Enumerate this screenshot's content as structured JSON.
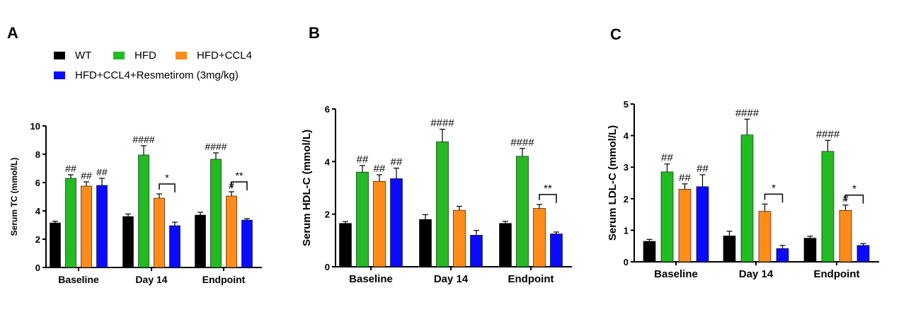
{
  "panels": {
    "a": "A",
    "b": "B",
    "c": "C"
  },
  "legend": {
    "items": [
      {
        "label": "WT",
        "color": "#000000"
      },
      {
        "label": "HFD",
        "color": "#22bb22"
      },
      {
        "label": "HFD+CCL4",
        "color": "#ff8c1a"
      },
      {
        "label": "HFD+CCL4+Resmetirom (3mg/kg)",
        "color": "#0a0aff"
      }
    ]
  },
  "chart_data": [
    {
      "type": "bar",
      "panel": "A",
      "ylabel": "Serum TC (mmol/L)",
      "ylim": [
        0,
        10
      ],
      "yticks": [
        0,
        2,
        4,
        6,
        8,
        10
      ],
      "categories": [
        "Baseline",
        "Day 14",
        "Endpoint"
      ],
      "series": [
        {
          "name": "WT",
          "values": [
            3.15,
            3.6,
            3.7
          ],
          "errors": [
            0.12,
            0.18,
            0.2
          ]
        },
        {
          "name": "HFD",
          "values": [
            6.3,
            7.95,
            7.65
          ],
          "errors": [
            0.25,
            0.65,
            0.45
          ]
        },
        {
          "name": "HFD+CCL4",
          "values": [
            5.75,
            4.9,
            5.05
          ],
          "errors": [
            0.3,
            0.3,
            0.3
          ]
        },
        {
          "name": "HFD+CCL4+Resmetirom (3mg/kg)",
          "values": [
            5.8,
            2.95,
            3.35
          ],
          "errors": [
            0.5,
            0.25,
            0.1
          ]
        }
      ],
      "annotations": [
        {
          "category": 0,
          "series": 1,
          "text": "##"
        },
        {
          "category": 0,
          "series": 2,
          "text": "##"
        },
        {
          "category": 0,
          "series": 3,
          "text": "##"
        },
        {
          "category": 1,
          "series": 1,
          "text": "####"
        },
        {
          "category": 2,
          "series": 1,
          "text": "####"
        },
        {
          "category": 2,
          "series": 2,
          "text": "#"
        }
      ],
      "brackets": [
        {
          "category": 1,
          "from": 2,
          "to": 3,
          "text": "*"
        },
        {
          "category": 2,
          "from": 2,
          "to": 3,
          "text": "**"
        }
      ]
    },
    {
      "type": "bar",
      "panel": "B",
      "ylabel": "Serum HDL-C (mmol/L)",
      "ylim": [
        0,
        6
      ],
      "yticks": [
        0,
        2,
        4,
        6
      ],
      "categories": [
        "Baseline",
        "Day 14",
        "Endpoint"
      ],
      "series": [
        {
          "name": "WT",
          "values": [
            1.65,
            1.8,
            1.65
          ],
          "errors": [
            0.07,
            0.18,
            0.08
          ]
        },
        {
          "name": "HFD",
          "values": [
            3.6,
            4.75,
            4.2
          ],
          "errors": [
            0.25,
            0.48,
            0.3
          ]
        },
        {
          "name": "HFD+CCL4",
          "values": [
            3.25,
            2.15,
            2.22
          ],
          "errors": [
            0.25,
            0.15,
            0.15
          ]
        },
        {
          "name": "HFD+CCL4+Resmetirom (3mg/kg)",
          "values": [
            3.35,
            1.2,
            1.25
          ],
          "errors": [
            0.4,
            0.18,
            0.07
          ]
        }
      ],
      "annotations": [
        {
          "category": 0,
          "series": 1,
          "text": "##"
        },
        {
          "category": 0,
          "series": 2,
          "text": "##"
        },
        {
          "category": 0,
          "series": 3,
          "text": "##"
        },
        {
          "category": 1,
          "series": 1,
          "text": "####"
        },
        {
          "category": 2,
          "series": 1,
          "text": "####"
        }
      ],
      "brackets": [
        {
          "category": 2,
          "from": 2,
          "to": 3,
          "text": "**"
        }
      ]
    },
    {
      "type": "bar",
      "panel": "C",
      "ylabel": "Serum LDL-C (mmol/L)",
      "ylim": [
        0,
        5
      ],
      "yticks": [
        0,
        1,
        2,
        3,
        4,
        5
      ],
      "categories": [
        "Baseline",
        "Day 14",
        "Endpoint"
      ],
      "series": [
        {
          "name": "WT",
          "values": [
            0.65,
            0.82,
            0.75
          ],
          "errors": [
            0.06,
            0.15,
            0.06
          ]
        },
        {
          "name": "HFD",
          "values": [
            2.85,
            4.02,
            3.5
          ],
          "errors": [
            0.25,
            0.5,
            0.35
          ]
        },
        {
          "name": "HFD+CCL4",
          "values": [
            2.3,
            1.6,
            1.63
          ],
          "errors": [
            0.17,
            0.23,
            0.17
          ]
        },
        {
          "name": "HFD+CCL4+Resmetirom (3mg/kg)",
          "values": [
            2.38,
            0.42,
            0.52
          ],
          "errors": [
            0.38,
            0.1,
            0.06
          ]
        }
      ],
      "annotations": [
        {
          "category": 0,
          "series": 1,
          "text": "##"
        },
        {
          "category": 0,
          "series": 2,
          "text": "##"
        },
        {
          "category": 0,
          "series": 3,
          "text": "##"
        },
        {
          "category": 1,
          "series": 1,
          "text": "####"
        },
        {
          "category": 2,
          "series": 1,
          "text": "####"
        },
        {
          "category": 2,
          "series": 2,
          "text": "#"
        }
      ],
      "brackets": [
        {
          "category": 1,
          "from": 2,
          "to": 3,
          "text": "*"
        },
        {
          "category": 2,
          "from": 2,
          "to": 3,
          "text": "*"
        }
      ]
    }
  ]
}
